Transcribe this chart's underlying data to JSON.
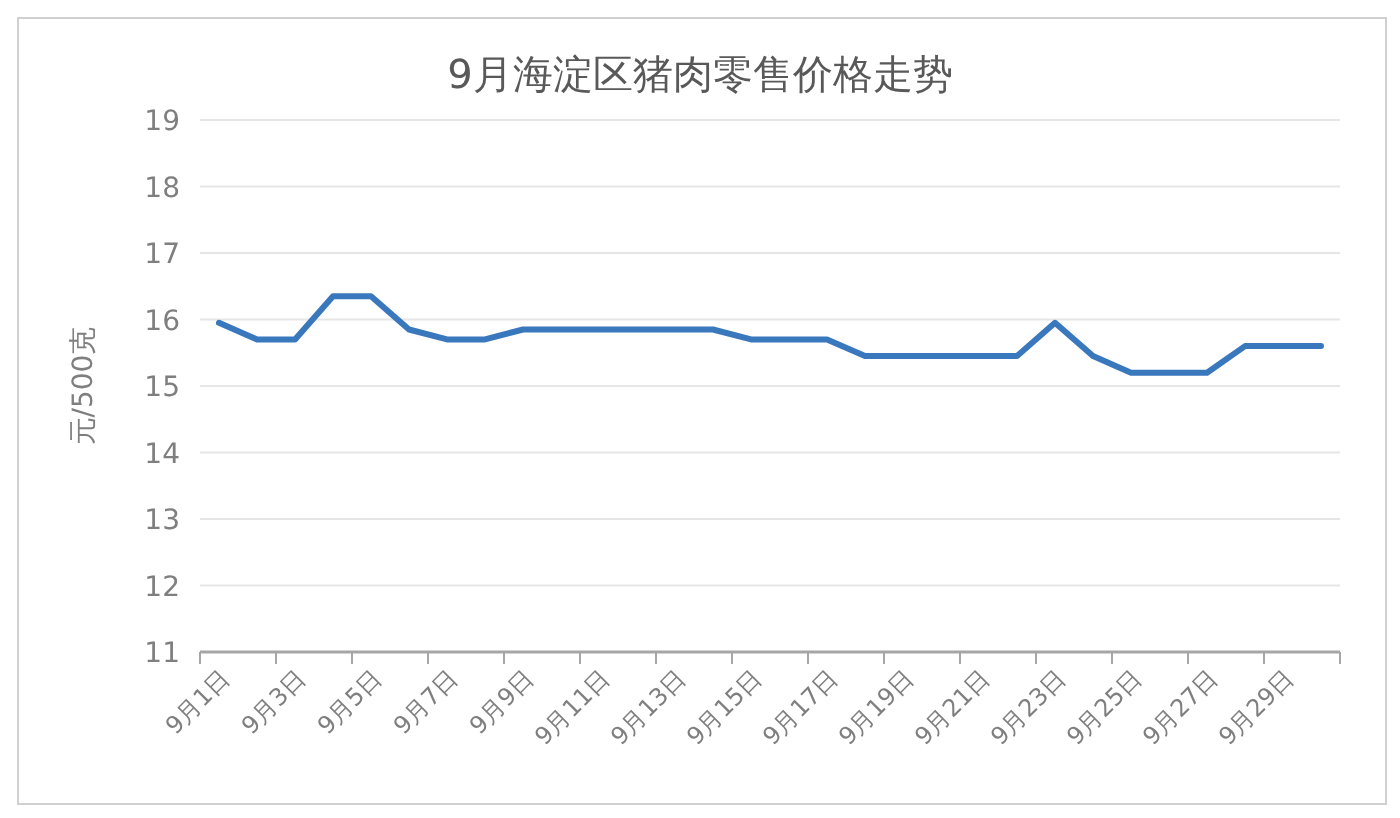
{
  "chart_data": {
    "type": "line",
    "title": "9月海淀区猪肉零售价格走势",
    "ylabel": "元/500克",
    "categories": [
      "9月1日",
      null,
      "9月3日",
      null,
      "9月5日",
      null,
      "9月7日",
      null,
      "9月9日",
      null,
      "9月11日",
      null,
      "9月13日",
      null,
      "9月15日",
      null,
      "9月17日",
      null,
      "9月19日",
      null,
      "9月21日",
      null,
      "9月23日",
      null,
      "9月25日",
      null,
      "9月27日",
      null,
      "9月29日",
      null
    ],
    "series": [
      {
        "color": "#3a78bd",
        "values": [
          15.95,
          15.7,
          15.7,
          16.35,
          16.35,
          15.85,
          15.7,
          15.7,
          15.85,
          15.85,
          15.85,
          15.85,
          15.85,
          15.85,
          15.7,
          15.7,
          15.7,
          15.45,
          15.45,
          15.45,
          15.45,
          15.45,
          15.95,
          15.45,
          15.2,
          15.2,
          15.2,
          15.6,
          15.6,
          15.6
        ]
      }
    ],
    "ylim": [
      11,
      19
    ],
    "yticks": [
      11,
      12,
      13,
      14,
      15,
      16,
      17,
      18,
      19
    ],
    "grid": "y",
    "marker": "none",
    "line_style": "solid"
  }
}
